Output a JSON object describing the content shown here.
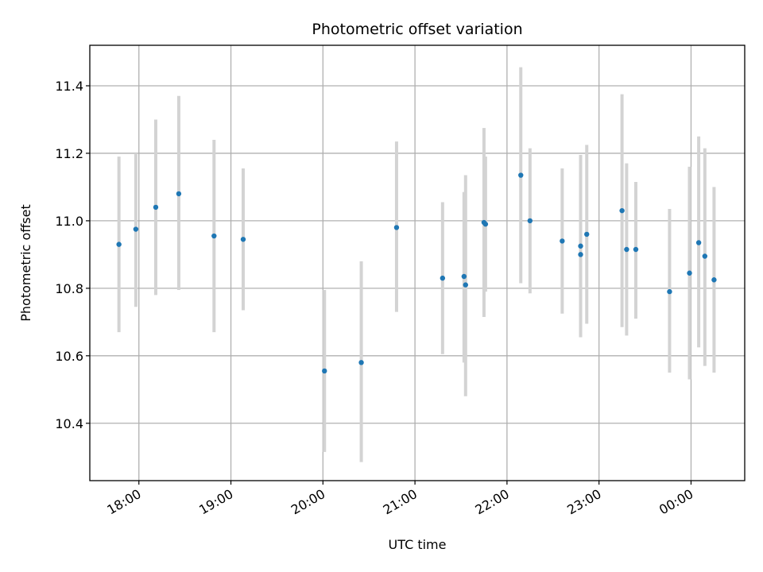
{
  "chart_data": {
    "type": "scatter",
    "title": "Photometric offset variation",
    "xlabel": "UTC time",
    "ylabel": "Photometric offset",
    "x_axis_kind": "time (hours), with date rollover at midnight",
    "xlim": [
      "17:28",
      "00:35"
    ],
    "ylim": [
      10.23,
      11.52
    ],
    "grid": true,
    "x_ticks": [
      "18:00",
      "19:00",
      "20:00",
      "21:00",
      "22:00",
      "23:00",
      "00:00"
    ],
    "y_ticks": [
      "10.4",
      "10.6",
      "10.8",
      "11.0",
      "11.2",
      "11.4"
    ],
    "point_color": "#1f77b4",
    "error_bar_color": "#d3d3d3",
    "series": [
      {
        "points": [
          {
            "time": "17:47",
            "y": 10.93,
            "ylo": 10.67,
            "yhi": 11.19
          },
          {
            "time": "17:58",
            "y": 10.975,
            "ylo": 10.745,
            "yhi": 11.2
          },
          {
            "time": "18:11",
            "y": 11.04,
            "ylo": 10.78,
            "yhi": 11.3
          },
          {
            "time": "18:26",
            "y": 11.08,
            "ylo": 10.795,
            "yhi": 11.37
          },
          {
            "time": "18:49",
            "y": 10.955,
            "ylo": 10.67,
            "yhi": 11.24
          },
          {
            "time": "19:08",
            "y": 10.945,
            "ylo": 10.735,
            "yhi": 11.155
          },
          {
            "time": "20:01",
            "y": 10.555,
            "ylo": 10.315,
            "yhi": 10.795
          },
          {
            "time": "20:25",
            "y": 10.58,
            "ylo": 10.285,
            "yhi": 10.88
          },
          {
            "time": "20:48",
            "y": 10.98,
            "ylo": 10.73,
            "yhi": 11.235
          },
          {
            "time": "21:18",
            "y": 10.83,
            "ylo": 10.605,
            "yhi": 11.055
          },
          {
            "time": "21:32",
            "y": 10.835,
            "ylo": 10.58,
            "yhi": 11.085
          },
          {
            "time": "21:33",
            "y": 10.81,
            "ylo": 10.48,
            "yhi": 11.135
          },
          {
            "time": "21:45",
            "y": 10.995,
            "ylo": 10.715,
            "yhi": 11.275
          },
          {
            "time": "21:46",
            "y": 10.99,
            "ylo": 10.79,
            "yhi": 11.19
          },
          {
            "time": "22:09",
            "y": 11.135,
            "ylo": 10.815,
            "yhi": 11.455
          },
          {
            "time": "22:15",
            "y": 11.0,
            "ylo": 10.785,
            "yhi": 11.215
          },
          {
            "time": "22:36",
            "y": 10.94,
            "ylo": 10.725,
            "yhi": 11.155
          },
          {
            "time": "22:48",
            "y": 10.925,
            "ylo": 10.655,
            "yhi": 11.195
          },
          {
            "time": "22:48",
            "y": 10.9,
            "ylo": 10.655,
            "yhi": 11.145
          },
          {
            "time": "22:52",
            "y": 10.96,
            "ylo": 10.695,
            "yhi": 11.225
          },
          {
            "time": "23:15",
            "y": 11.03,
            "ylo": 10.685,
            "yhi": 11.375
          },
          {
            "time": "23:18",
            "y": 10.915,
            "ylo": 10.66,
            "yhi": 11.17
          },
          {
            "time": "23:24",
            "y": 10.915,
            "ylo": 10.71,
            "yhi": 11.115
          },
          {
            "time": "23:46",
            "y": 10.79,
            "ylo": 10.55,
            "yhi": 11.035
          },
          {
            "time": "23:59",
            "y": 10.845,
            "ylo": 10.53,
            "yhi": 11.16
          },
          {
            "time": "00:05",
            "y": 10.935,
            "ylo": 10.625,
            "yhi": 11.25
          },
          {
            "time": "00:09",
            "y": 10.895,
            "ylo": 10.57,
            "yhi": 11.215
          },
          {
            "time": "00:15",
            "y": 10.825,
            "ylo": 10.55,
            "yhi": 11.1
          }
        ]
      }
    ]
  }
}
